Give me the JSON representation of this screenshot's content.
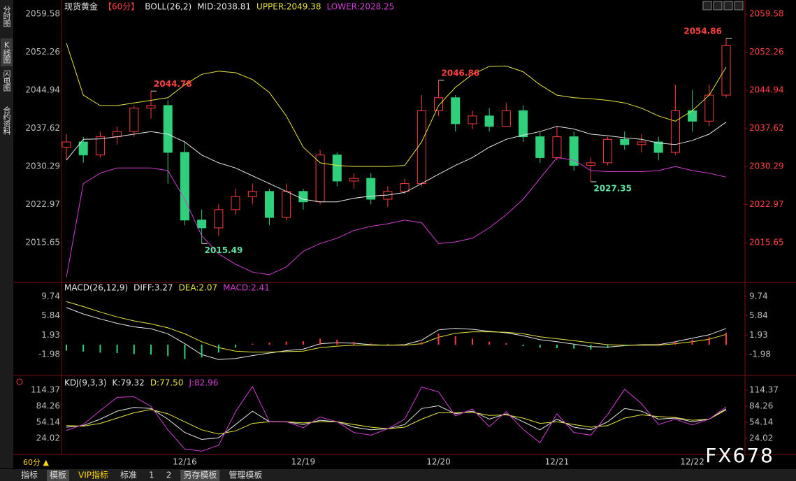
{
  "chart_data": [
    {
      "type": "candlestick",
      "title": "现货黄金",
      "period": "【60分】",
      "indicator": "BOLL(26,2)",
      "categories": [
        null,
        null,
        null,
        null,
        null,
        null,
        null,
        "12/16",
        null,
        null,
        null,
        null,
        null,
        null,
        "12/19",
        null,
        null,
        null,
        null,
        null,
        null,
        null,
        "12/20",
        null,
        null,
        null,
        null,
        null,
        null,
        "12/21",
        null,
        null,
        null,
        null,
        null,
        null,
        null,
        "12/22",
        null,
        null
      ],
      "candles": [
        [
          2034,
          2036.5,
          2031.5,
          2035
        ],
        [
          2035,
          2036,
          2031,
          2032.5
        ],
        [
          2032.5,
          2037,
          2032,
          2036
        ],
        [
          2036,
          2038,
          2034.5,
          2037
        ],
        [
          2037,
          2042,
          2036,
          2041.5
        ],
        [
          2041.5,
          2044.78,
          2039.5,
          2042
        ],
        [
          2042,
          2043,
          2027,
          2033
        ],
        [
          2033,
          2035,
          2019,
          2020
        ],
        [
          2020,
          2022,
          2015.49,
          2018.5
        ],
        [
          2018.5,
          2023,
          2017,
          2022
        ],
        [
          2022,
          2026,
          2021,
          2024.5
        ],
        [
          2024.5,
          2027,
          2023,
          2025.5
        ],
        [
          2025.5,
          2026,
          2019,
          2020.5
        ],
        [
          2020.5,
          2027,
          2020,
          2025.5
        ],
        [
          2025.5,
          2026,
          2022,
          2023.5
        ],
        [
          2023.5,
          2033.5,
          2023,
          2032.5
        ],
        [
          2032.5,
          2033,
          2026.5,
          2027.5
        ],
        [
          2027.5,
          2029,
          2026,
          2028
        ],
        [
          2028,
          2029,
          2023,
          2024
        ],
        [
          2024,
          2026.5,
          2022.5,
          2025.5
        ],
        [
          2025.5,
          2028,
          2025,
          2027
        ],
        [
          2027,
          2044,
          2026.5,
          2041
        ],
        [
          2041,
          2046.86,
          2040,
          2043.5
        ],
        [
          2043.5,
          2044,
          2037,
          2038.5
        ],
        [
          2038.5,
          2041,
          2037.5,
          2040
        ],
        [
          2040,
          2041.5,
          2037,
          2038
        ],
        [
          2038,
          2042.5,
          2038,
          2041
        ],
        [
          2041,
          2042,
          2035,
          2036
        ],
        [
          2036,
          2037,
          2031,
          2032
        ],
        [
          2032,
          2038,
          2031.5,
          2036
        ],
        [
          2036,
          2037,
          2029.5,
          2030.5
        ],
        [
          2030.5,
          2032,
          2027.35,
          2031
        ],
        [
          2031,
          2036,
          2030.5,
          2035.5
        ],
        [
          2035.5,
          2037,
          2033.5,
          2034.5
        ],
        [
          2034.5,
          2036.5,
          2033,
          2035
        ],
        [
          2035,
          2036,
          2031.5,
          2033
        ],
        [
          2033,
          2046,
          2032.5,
          2041
        ],
        [
          2041,
          2045,
          2037,
          2039
        ],
        [
          2039,
          2046,
          2038,
          2044
        ],
        [
          2044,
          2054.86,
          2043.5,
          2053.5
        ]
      ],
      "up_color": "#ff3b3b",
      "down_color": "#2fd07c",
      "series": [
        {
          "name": "MID:2038.81",
          "color": "#e6e6e6",
          "values": [
            2031.5,
            2035.5,
            2035.6,
            2036,
            2036.5,
            2037,
            2036.5,
            2035,
            2032.5,
            2031,
            2030,
            2028.5,
            2027,
            2025.5,
            2024,
            2023.5,
            2023.5,
            2024.2,
            2024.6,
            2024.8,
            2025.3,
            2027,
            2028.8,
            2030.5,
            2032,
            2034,
            2035.5,
            2036.3,
            2037,
            2038,
            2037.5,
            2036.5,
            2036.2,
            2035.8,
            2035.5,
            2034.8,
            2034.5,
            2035.3,
            2036.5,
            2038.81
          ]
        },
        {
          "name": "UPPER:2049.38",
          "color": "#e8e43a",
          "values": [
            2054,
            2044,
            2042,
            2042,
            2042.5,
            2043,
            2043.5,
            2046,
            2048,
            2048.6,
            2048.3,
            2047,
            2044.5,
            2040,
            2034,
            2031,
            2030.5,
            2030.3,
            2030.3,
            2030.3,
            2030.5,
            2035,
            2042,
            2045.5,
            2048,
            2049.5,
            2049.6,
            2048.5,
            2046,
            2044,
            2043.5,
            2043.3,
            2043,
            2042.5,
            2041.5,
            2040,
            2039,
            2041,
            2044,
            2049.38
          ]
        },
        {
          "name": "LOWER:2028.25",
          "color": "#d23ed2",
          "values": [
            2009,
            2027,
            2029,
            2030,
            2030,
            2030,
            2029.5,
            2024,
            2017,
            2013.5,
            2011.5,
            2010,
            2009.5,
            2011,
            2014,
            2015.5,
            2016.5,
            2018,
            2018.8,
            2019.3,
            2020,
            2019.5,
            2015.5,
            2015.8,
            2016.5,
            2018.5,
            2021,
            2024,
            2028,
            2032,
            2031.5,
            2029.5,
            2029.3,
            2029.3,
            2029.3,
            2029.5,
            2030.3,
            2029.5,
            2029,
            2028.25
          ]
        }
      ],
      "annotations": [
        {
          "x": 5,
          "value": 2044.78
        },
        {
          "x": 8,
          "value": 2015.49
        },
        {
          "x": 22,
          "value": 2046.86
        },
        {
          "x": 31,
          "value": 2027.35
        },
        {
          "x": 39,
          "value": 2054.86
        }
      ],
      "ylim": [
        2008.55,
        2061.2
      ],
      "yticks": [
        2059.58,
        2052.26,
        2044.94,
        2037.62,
        2030.29,
        2022.97,
        2015.65
      ]
    },
    {
      "type": "macd",
      "title": "MACD(26,12,9)",
      "series": [
        {
          "name": "DIFF:3.27",
          "color": "#e6e6e6",
          "values": [
            7.5,
            6.2,
            5.2,
            4.3,
            3.6,
            3.2,
            2.2,
            0.2,
            -2.0,
            -3.0,
            -2.8,
            -2.2,
            -1.7,
            -1.2,
            -0.9,
            0.2,
            0.4,
            0.3,
            0.0,
            -0.1,
            0.0,
            0.9,
            3.0,
            3.3,
            3.1,
            2.7,
            2.4,
            1.8,
            1.0,
            0.6,
            0.1,
            -0.4,
            -0.5,
            -0.2,
            0.0,
            0.0,
            0.6,
            1.3,
            2.0,
            3.27
          ]
        },
        {
          "name": "DEA:2.07",
          "color": "#e8e43a",
          "values": [
            8.7,
            7.7,
            6.6,
            5.6,
            4.8,
            4.2,
            3.4,
            2.2,
            0.6,
            -0.6,
            -1.3,
            -1.5,
            -1.5,
            -1.4,
            -1.3,
            -0.6,
            -0.3,
            -0.1,
            -0.1,
            -0.1,
            -0.1,
            0.2,
            1.5,
            2.3,
            2.6,
            2.6,
            2.5,
            2.2,
            1.6,
            1.2,
            0.8,
            0.4,
            0.0,
            -0.1,
            -0.1,
            -0.1,
            0.2,
            0.6,
            1.1,
            2.07
          ]
        },
        {
          "name": "MACD:2.41",
          "color": "#d23ed2",
          "type": "bar",
          "up_color": "#ff3b3b",
          "down_color": "#2fd07c",
          "values": [
            -1.2,
            -1.4,
            -1.6,
            -1.7,
            -1.9,
            -2.0,
            -2.3,
            -2.9,
            -2.6,
            -1.6,
            -0.6,
            0.2,
            0.4,
            0.6,
            0.7,
            1.2,
            1.0,
            0.6,
            0.2,
            0.1,
            0.1,
            0.5,
            2.2,
            1.7,
            1.2,
            0.6,
            0.3,
            -0.3,
            -0.6,
            -0.7,
            -0.8,
            -1.0,
            -0.7,
            -0.3,
            0.1,
            0.2,
            0.6,
            1.0,
            1.5,
            2.41
          ]
        }
      ],
      "ylim": [
        -5.93,
        11.72
      ],
      "yticks": [
        9.74,
        5.84,
        1.93,
        -1.98
      ]
    },
    {
      "type": "kdj",
      "title": "KDJ(9,3,3)",
      "series": [
        {
          "name": "K:79.32",
          "color": "#e6e6e6",
          "values": [
            45,
            48,
            60,
            75,
            82,
            80,
            60,
            35,
            22,
            25,
            50,
            75,
            55,
            55,
            50,
            58,
            55,
            45,
            40,
            42,
            50,
            80,
            85,
            70,
            75,
            60,
            70,
            55,
            40,
            60,
            45,
            40,
            55,
            80,
            75,
            60,
            62,
            55,
            60,
            79.32
          ]
        },
        {
          "name": "D:77.50",
          "color": "#e8e43a",
          "values": [
            48,
            47,
            52,
            62,
            72,
            78,
            70,
            55,
            40,
            32,
            38,
            52,
            55,
            55,
            53,
            55,
            55,
            50,
            45,
            42,
            45,
            60,
            72,
            72,
            73,
            67,
            68,
            62,
            52,
            55,
            50,
            45,
            48,
            62,
            68,
            65,
            63,
            58,
            60,
            77.5
          ]
        },
        {
          "name": "J:82.96",
          "color": "#d23ed2",
          "values": [
            39,
            50,
            76,
            101,
            102,
            84,
            40,
            4,
            0,
            11,
            74,
            121,
            55,
            55,
            44,
            64,
            55,
            35,
            30,
            42,
            60,
            120,
            111,
            66,
            79,
            46,
            74,
            41,
            16,
            70,
            35,
            30,
            69,
            116,
            89,
            50,
            60,
            49,
            60,
            82.96
          ]
        }
      ],
      "ylim": [
        -6.1,
        131.4
      ],
      "yticks": [
        114.37,
        84.26,
        54.14,
        24.02
      ]
    }
  ],
  "sidebar": [
    "分时图",
    "K线图",
    "闪电图",
    "合约资料"
  ],
  "period_button": "60分 ▲",
  "toolbar": [
    "指标",
    "模板",
    "VIP指标",
    "标准",
    "1",
    "2",
    "另存模板",
    "管理模板"
  ],
  "watermark": "FX678"
}
